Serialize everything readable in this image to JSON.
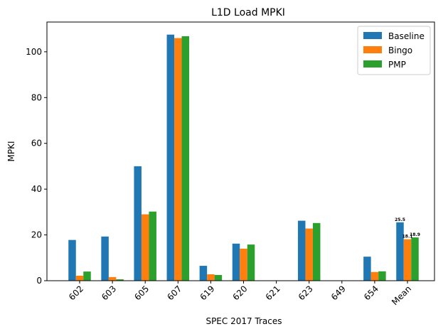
{
  "chart_data": {
    "type": "bar",
    "title": "L1D Load MPKI",
    "xlabel": "SPEC 2017 Traces",
    "ylabel": "MPKI",
    "ylim": [
      0,
      113
    ],
    "yticks": [
      0,
      20,
      40,
      60,
      80,
      100
    ],
    "categories": [
      "602",
      "603",
      "605",
      "607",
      "619",
      "620",
      "621",
      "623",
      "649",
      "654",
      "Mean"
    ],
    "series": [
      {
        "name": "Baseline",
        "color": "#1f77b4",
        "values": [
          17.8,
          19.3,
          50.0,
          107.5,
          6.5,
          16.2,
          0.0,
          26.2,
          0.0,
          10.5,
          25.5
        ]
      },
      {
        "name": "Bingo",
        "color": "#ff7f0e",
        "values": [
          2.2,
          1.6,
          29.0,
          106.0,
          2.8,
          14.0,
          0.0,
          22.8,
          0.0,
          3.8,
          18.1
        ]
      },
      {
        "name": "PMP",
        "color": "#2ca02c",
        "values": [
          4.0,
          0.6,
          30.2,
          106.8,
          2.5,
          15.8,
          0.0,
          25.2,
          0.0,
          4.1,
          18.9
        ]
      }
    ],
    "data_labels": [
      {
        "category": "Mean",
        "series": "Baseline",
        "text": "25.5"
      },
      {
        "category": "Mean",
        "series": "Bingo",
        "text": "18.1"
      },
      {
        "category": "Mean",
        "series": "PMP",
        "text": "18.9"
      }
    ],
    "legend_position": "top-right",
    "grid": false
  }
}
